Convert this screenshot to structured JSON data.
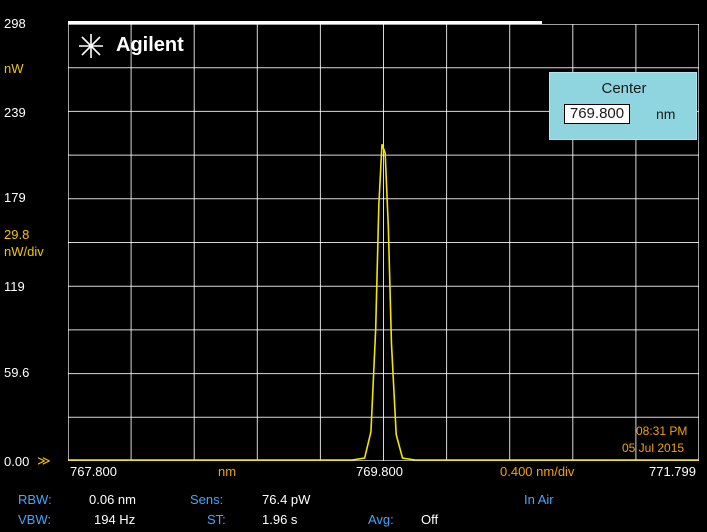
{
  "brand": {
    "name": "Agilent"
  },
  "y_axis": {
    "top_label": "298",
    "unit": "nW",
    "scale": "29.8",
    "scale_unit": "nW/div",
    "ticks": [
      "239",
      "179",
      "119",
      "59.6"
    ],
    "bottom_label": "0.00"
  },
  "x_axis": {
    "start": "767.800",
    "unit": "nm",
    "center": "769.800",
    "span": "0.400 nm/div",
    "stop": "771.799"
  },
  "marker": {
    "title": "Center",
    "value": "769.800",
    "unit": "nm"
  },
  "timestamp": {
    "time": "08:31 PM",
    "date": "05 Jul 2015"
  },
  "status": {
    "rbw_label": "RBW:",
    "rbw_value": "0.06 nm",
    "vbw_label": "VBW:",
    "vbw_value": "194  Hz",
    "sens_label": "Sens:",
    "sens_value": "76.4 pW",
    "st_label": "ST:",
    "st_value": "1.96 s",
    "avg_label": "Avg:",
    "avg_value": "Off",
    "medium": "In Air"
  },
  "colors": {
    "trace": "#f2e600",
    "grid": "#ffffff",
    "panel": "#8fd5df"
  },
  "chart_data": {
    "type": "line",
    "xlabel": "nm",
    "ylabel": "nW",
    "xlim": [
      767.8,
      771.799
    ],
    "ylim": [
      0,
      298
    ],
    "grid": true,
    "series": [
      {
        "x": [
          767.8,
          769.3,
          769.6,
          769.68,
          769.72,
          769.75,
          769.77,
          769.79,
          769.81,
          769.83,
          769.85,
          769.88,
          769.92,
          770.0,
          770.4,
          771.799
        ],
        "values": [
          0,
          0,
          0.5,
          2,
          20,
          90,
          175,
          216,
          210,
          160,
          80,
          18,
          2,
          0.5,
          0,
          0
        ]
      }
    ]
  }
}
